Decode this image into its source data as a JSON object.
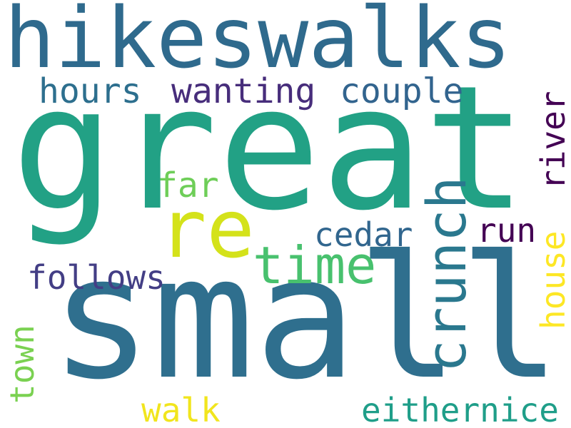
{
  "wordcloud": {
    "words": {
      "hikeswalks": {
        "text": "hikeswalks",
        "color": "#2f6a8d"
      },
      "great": {
        "text": "great",
        "color": "#22a185"
      },
      "small": {
        "text": "small",
        "color": "#2f6f8e"
      },
      "re": {
        "text": "re",
        "color": "#d4e21a"
      },
      "time": {
        "text": "time",
        "color": "#48c16e"
      },
      "hours": {
        "text": "hours",
        "color": "#2d6f8e"
      },
      "wanting": {
        "text": "wanting",
        "color": "#472d7b"
      },
      "couple": {
        "text": "couple",
        "color": "#32648e"
      },
      "river": {
        "text": "river",
        "color": "#440154"
      },
      "far": {
        "text": "far",
        "color": "#6ece58"
      },
      "crunch": {
        "text": "crunch",
        "color": "#2a788e"
      },
      "cedar": {
        "text": "cedar",
        "color": "#31668e"
      },
      "run": {
        "text": "run",
        "color": "#440154"
      },
      "house": {
        "text": "house",
        "color": "#fde725"
      },
      "follows": {
        "text": "follows",
        "color": "#433e85"
      },
      "town": {
        "text": "town",
        "color": "#7ad151"
      },
      "walk": {
        "text": "walk",
        "color": "#f1e51d"
      },
      "eithernice": {
        "text": "eithernice",
        "color": "#1f9e89"
      }
    }
  }
}
